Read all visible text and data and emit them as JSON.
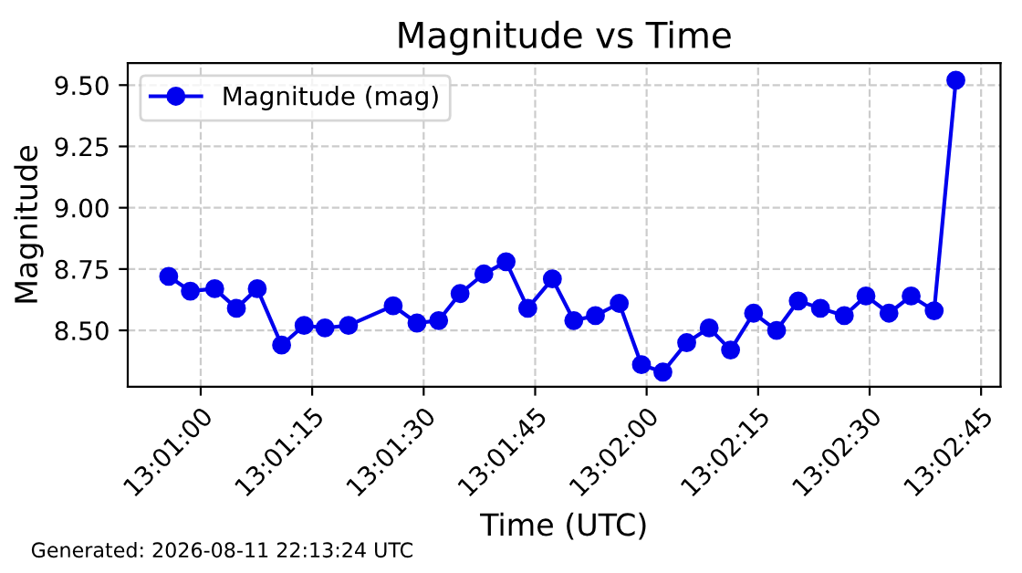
{
  "chart_data": {
    "type": "line",
    "title": "Magnitude vs Time",
    "xlabel": "Time (UTC)",
    "ylabel": "Magnitude",
    "x": [
      13.01547,
      13.01628,
      13.01719,
      13.018,
      13.01878,
      13.01969,
      13.02053,
      13.02131,
      13.02219,
      13.02386,
      13.02475,
      13.02556,
      13.02636,
      13.02725,
      13.02808,
      13.02889,
      13.02981,
      13.03061,
      13.03142,
      13.03231,
      13.03314,
      13.03394,
      13.03483,
      13.03567,
      13.03647,
      13.03733,
      13.03819,
      13.039,
      13.03983,
      13.04072,
      13.04153,
      13.04239,
      13.04322,
      13.04408,
      13.04489
    ],
    "series": [
      {
        "name": "Magnitude (mag)",
        "color": "#0000ee",
        "values": [
          8.72,
          8.66,
          8.67,
          8.59,
          8.67,
          8.44,
          8.52,
          8.51,
          8.52,
          8.6,
          8.53,
          8.54,
          8.65,
          8.73,
          8.78,
          8.59,
          8.71,
          8.54,
          8.56,
          8.61,
          8.36,
          8.33,
          8.45,
          8.51,
          8.42,
          8.57,
          8.5,
          8.62,
          8.59,
          8.56,
          8.64,
          8.57,
          8.64,
          8.58,
          9.52
        ]
      }
    ],
    "xlim": [
      13.01394,
      13.04656
    ],
    "ylim": [
      8.27,
      9.59
    ],
    "xticks": [
      {
        "value": 13.016667,
        "label": "13:01:00"
      },
      {
        "value": 13.020833,
        "label": "13:01:15"
      },
      {
        "value": 13.025,
        "label": "13:01:30"
      },
      {
        "value": 13.029167,
        "label": "13:01:45"
      },
      {
        "value": 13.033333,
        "label": "13:02:00"
      },
      {
        "value": 13.0375,
        "label": "13:02:15"
      },
      {
        "value": 13.041667,
        "label": "13:02:30"
      },
      {
        "value": 13.045833,
        "label": "13:02:45"
      }
    ],
    "yticks": [
      {
        "value": 8.5,
        "label": "8.50"
      },
      {
        "value": 8.75,
        "label": "8.75"
      },
      {
        "value": 9.0,
        "label": "9.00"
      },
      {
        "value": 9.25,
        "label": "9.25"
      },
      {
        "value": 9.5,
        "label": "9.50"
      }
    ],
    "grid": true,
    "legend": "top left",
    "marker": "circle",
    "line_style": "solid",
    "annotations": [
      "Generated: 2026-08-11 22:13:24 UTC"
    ]
  }
}
